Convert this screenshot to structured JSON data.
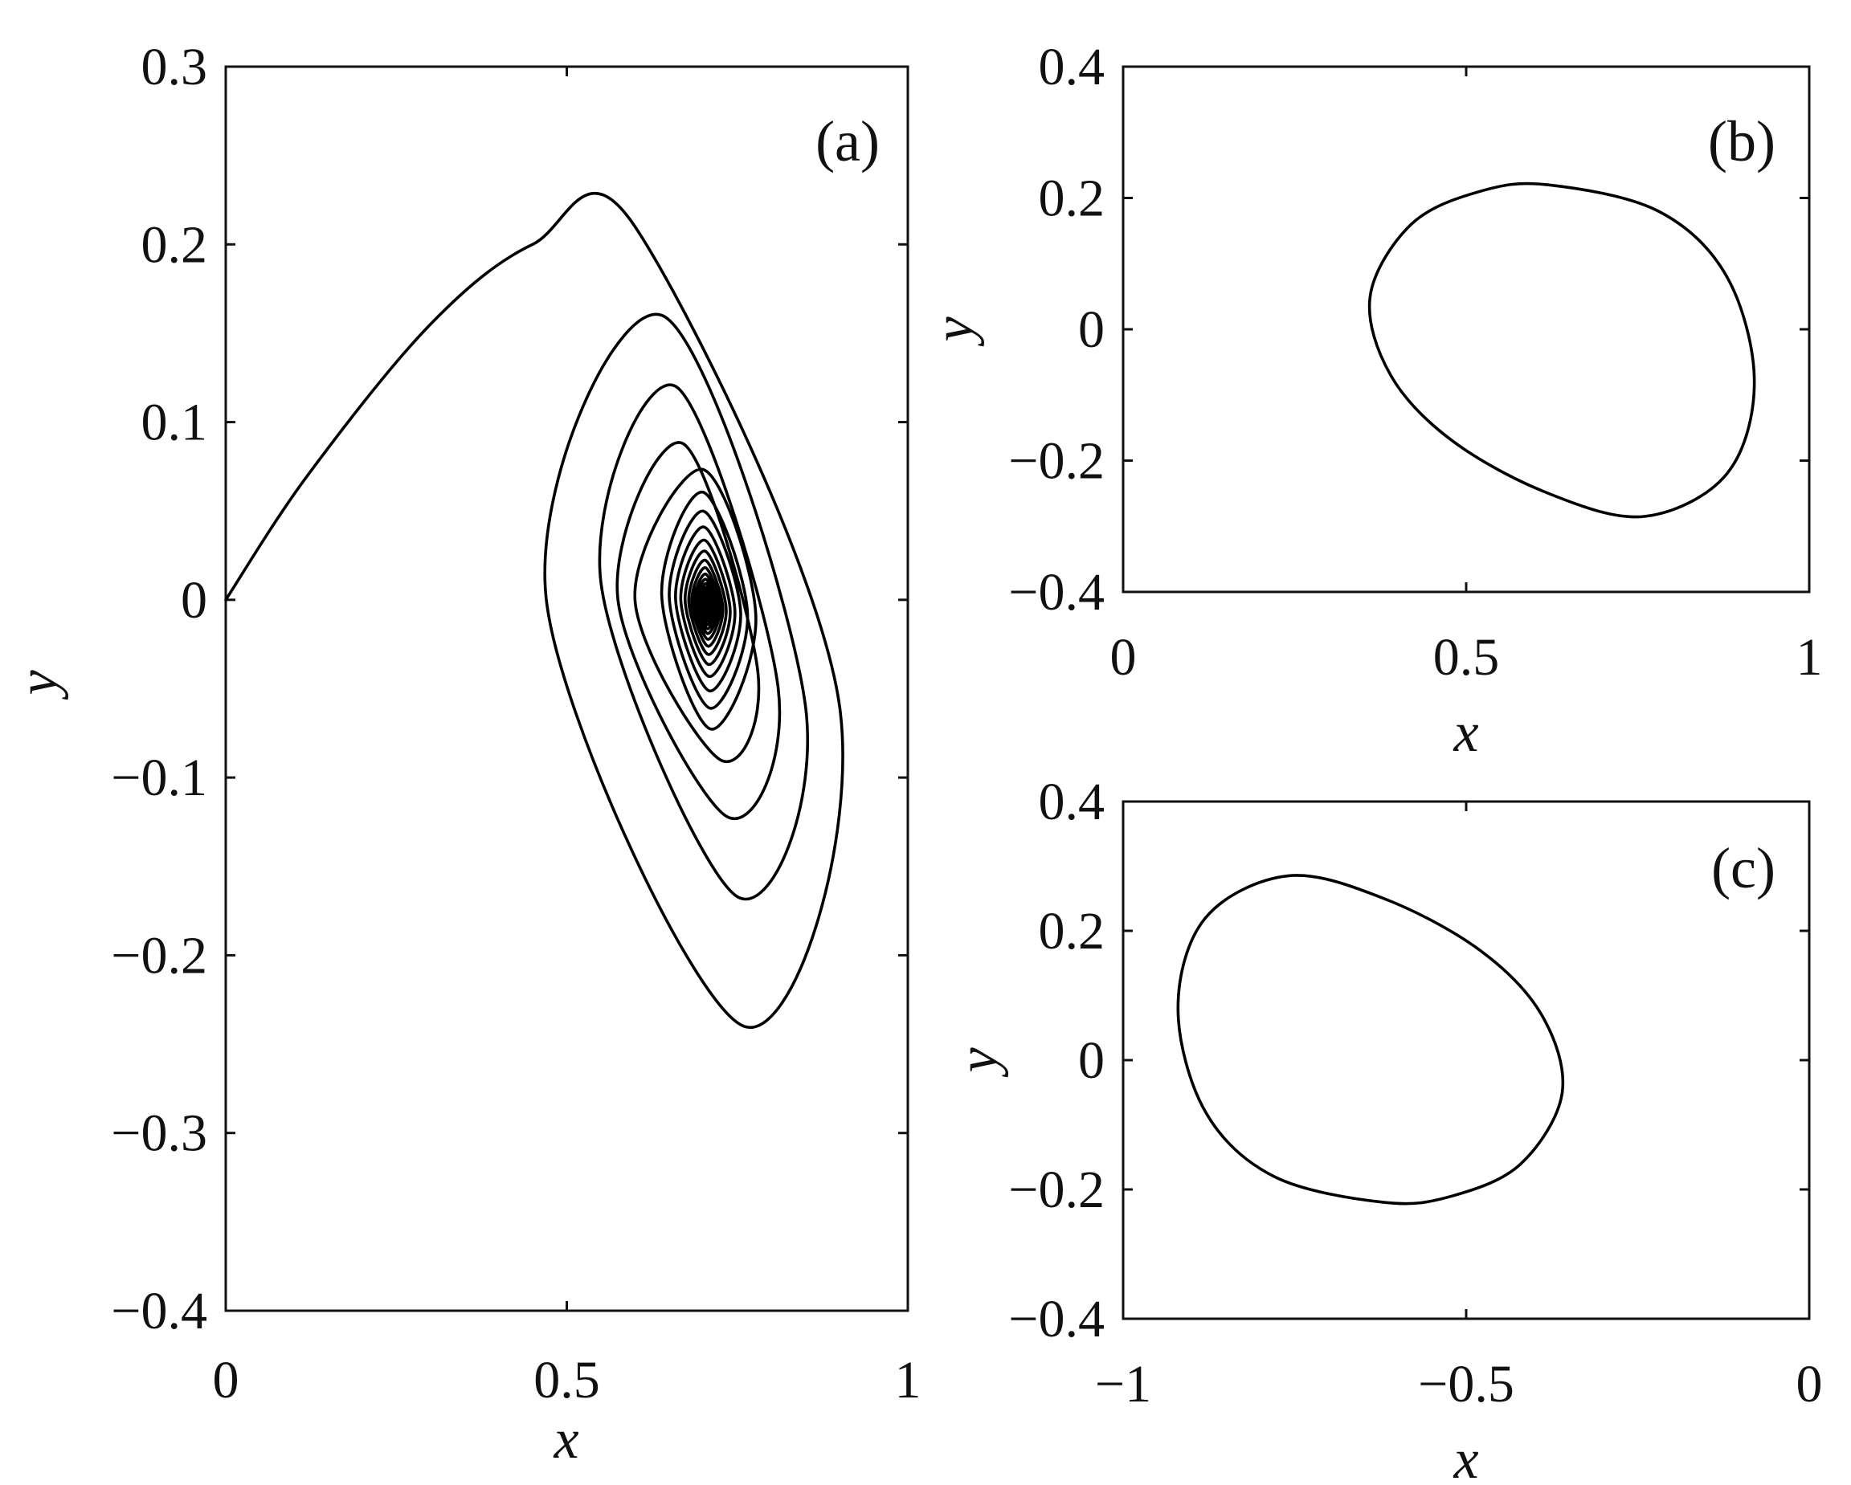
{
  "chart_data": [
    {
      "panel": "(a)",
      "type": "line",
      "xlabel": "x",
      "ylabel": "y",
      "xlim": [
        0,
        1
      ],
      "ylim": [
        -0.4,
        0.3
      ],
      "xticks": [
        0,
        0.5,
        1
      ],
      "xtick_labels": [
        "0",
        "0.5",
        "1"
      ],
      "yticks": [
        -0.4,
        -0.3,
        -0.2,
        -0.1,
        0,
        0.1,
        0.2,
        0.3
      ],
      "ytick_labels": [
        "−0.4",
        "−0.3",
        "−0.2",
        "−0.1",
        "0",
        "0.1",
        "0.2",
        "0.3"
      ],
      "grid": false,
      "series": [
        {
          "kind": "spiral",
          "start": [
            0.0,
            0.0
          ],
          "center": [
            0.705,
            -0.003
          ],
          "spiral_points": [
            [
              0.6,
              0.21
            ],
            [
              0.9,
              -0.06
            ],
            [
              0.76,
              -0.24
            ],
            [
              0.47,
              0.0
            ],
            [
              0.64,
              0.16
            ],
            [
              0.85,
              -0.06
            ],
            [
              0.75,
              -0.167
            ],
            [
              0.55,
              0.01
            ],
            [
              0.66,
              0.12
            ],
            [
              0.81,
              -0.05
            ],
            [
              0.735,
              -0.122
            ],
            [
              0.575,
              0.0
            ],
            [
              0.67,
              0.088
            ],
            [
              0.78,
              -0.04
            ],
            [
              0.725,
              -0.09
            ],
            [
              0.6,
              0.0
            ]
          ]
        }
      ]
    },
    {
      "panel": "(b)",
      "type": "line",
      "xlabel": "x",
      "ylabel": "y",
      "xlim": [
        0,
        1
      ],
      "ylim": [
        -0.4,
        0.4
      ],
      "xticks": [
        0,
        0.5,
        1
      ],
      "xtick_labels": [
        "0",
        "0.5",
        "1"
      ],
      "yticks": [
        -0.4,
        -0.2,
        0,
        0.2,
        0.4
      ],
      "ytick_labels": [
        "−0.4",
        "−0.2",
        "0",
        "0.2",
        "0.4"
      ],
      "grid": false,
      "series": [
        {
          "kind": "closed-orbit",
          "points": [
            [
              0.62,
              0.22
            ],
            [
              0.78,
              0.18
            ],
            [
              0.88,
              0.08
            ],
            [
              0.92,
              -0.08
            ],
            [
              0.88,
              -0.22
            ],
            [
              0.76,
              -0.285
            ],
            [
              0.62,
              -0.25
            ],
            [
              0.48,
              -0.17
            ],
            [
              0.39,
              -0.07
            ],
            [
              0.36,
              0.05
            ],
            [
              0.42,
              0.16
            ],
            [
              0.52,
              0.21
            ]
          ]
        }
      ]
    },
    {
      "panel": "(c)",
      "type": "line",
      "xlabel": "x",
      "ylabel": "y",
      "xlim": [
        -1,
        0
      ],
      "ylim": [
        -0.4,
        0.4
      ],
      "xticks": [
        -1,
        -0.5,
        0
      ],
      "xtick_labels": [
        "−1",
        "−0.5",
        "0"
      ],
      "yticks": [
        -0.4,
        -0.2,
        0,
        0.2,
        0.4
      ],
      "ytick_labels": [
        "−0.4",
        "−0.2",
        "0",
        "0.2",
        "0.4"
      ],
      "grid": false,
      "series": [
        {
          "kind": "closed-orbit",
          "points": [
            [
              -0.76,
              0.285
            ],
            [
              -0.62,
              0.25
            ],
            [
              -0.48,
              0.17
            ],
            [
              -0.39,
              0.07
            ],
            [
              -0.36,
              -0.05
            ],
            [
              -0.42,
              -0.16
            ],
            [
              -0.52,
              -0.21
            ],
            [
              -0.62,
              -0.22
            ],
            [
              -0.78,
              -0.18
            ],
            [
              -0.88,
              -0.08
            ],
            [
              -0.92,
              0.08
            ],
            [
              -0.88,
              0.22
            ]
          ]
        }
      ]
    }
  ]
}
